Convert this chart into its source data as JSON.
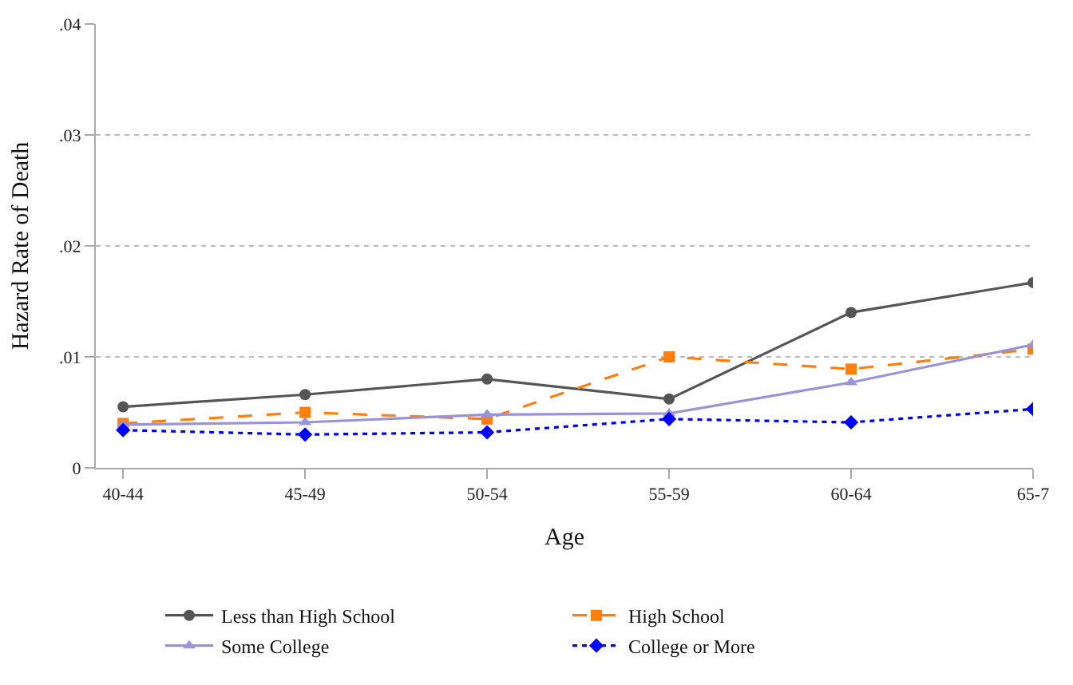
{
  "chart_data": {
    "type": "line",
    "xlabel": "Age",
    "ylabel": "Hazard Rate of Death",
    "categories": [
      "40-44",
      "45-49",
      "50-54",
      "55-59",
      "60-64",
      "65-7"
    ],
    "series": [
      {
        "name": "Less than High School",
        "color": "#555555",
        "marker": "circle",
        "line_style": "solid",
        "values": [
          0.0055,
          0.0066,
          0.008,
          0.0062,
          0.014,
          0.0167
        ]
      },
      {
        "name": "High School",
        "color": "#ff7f0e",
        "marker": "square",
        "line_style": "dashed",
        "values": [
          0.004,
          0.005,
          0.0044,
          0.01,
          0.0089,
          0.0107
        ]
      },
      {
        "name": "Some College",
        "color": "#9a93d8",
        "marker": "triangle",
        "line_style": "solid",
        "values": [
          0.0039,
          0.0041,
          0.0048,
          0.0049,
          0.0077,
          0.0111
        ]
      },
      {
        "name": "College or More",
        "color": "#0000ff",
        "marker": "diamond",
        "line_style": "dotted",
        "values": [
          0.0034,
          0.003,
          0.0032,
          0.0044,
          0.0041,
          0.0053
        ]
      }
    ],
    "ylim": [
      0,
      0.04
    ],
    "yticks": [
      0,
      {
        "value": 0.01,
        "label": ".01"
      },
      {
        "value": 0.02,
        "label": ".02"
      },
      {
        "value": 0.03,
        "label": ".03"
      },
      {
        "value": 0.04,
        "label": ".04"
      }
    ],
    "grid": "y",
    "legend": "bottom"
  }
}
